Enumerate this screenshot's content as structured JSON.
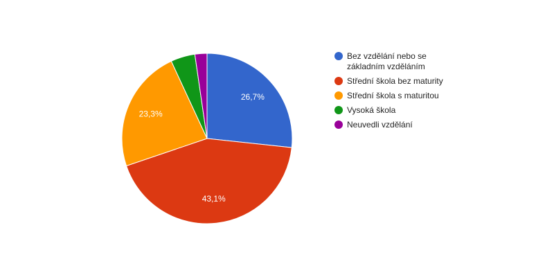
{
  "chart_data": {
    "type": "pie",
    "categories": [
      "Bez vzdělání nebo se základním vzděláním",
      "Střední škola bez maturity",
      "Střední škola s maturitou",
      "Vysoká škola",
      "Neuvedli vzdělání"
    ],
    "values": [
      26.7,
      43.1,
      23.3,
      4.6,
      2.3
    ],
    "value_labels": [
      "26,7%",
      "43,1%",
      "23,3%",
      null,
      null
    ],
    "colors": [
      "#3366cc",
      "#dc3912",
      "#ff9900",
      "#109618",
      "#990099"
    ],
    "legend": "right"
  }
}
